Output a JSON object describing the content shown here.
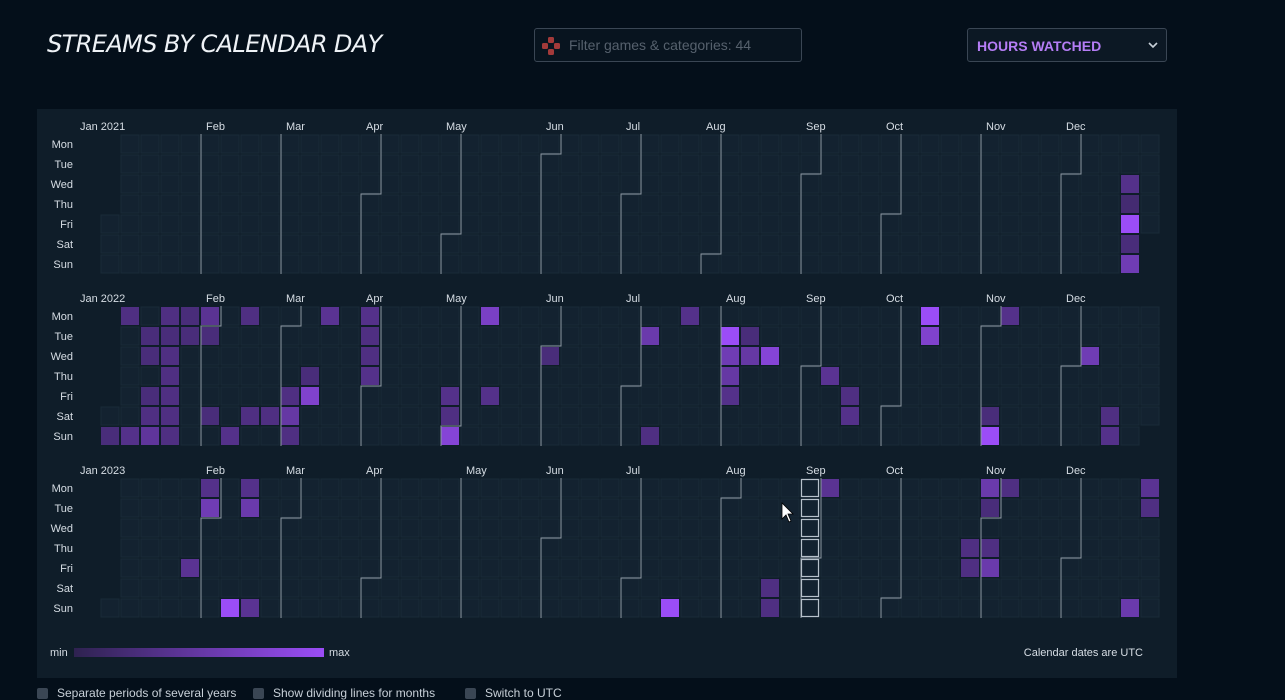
{
  "header": {
    "title": "STREAMS BY CALENDAR DAY",
    "filter_placeholder": "Filter games & categories: 44",
    "metric_select": "HOURS WATCHED"
  },
  "icons": {
    "filter": "controller-icon",
    "select": "chevron-down-icon"
  },
  "colors": {
    "empty_cell": "#132230",
    "cell_border": "#1a2a38",
    "scale_min": "#2e2250",
    "scale_max": "#9b4df7",
    "selected_border": "#b8c2cc",
    "month_line": "#8e99a4"
  },
  "weekdays": [
    "Mon",
    "Tue",
    "Wed",
    "Thu",
    "Fri",
    "Sat",
    "Sun"
  ],
  "months": [
    "Feb",
    "Mar",
    "Apr",
    "May",
    "Jun",
    "Jul",
    "Aug",
    "Sep",
    "Oct",
    "Nov",
    "Dec"
  ],
  "legend": {
    "min": "min",
    "max": "max",
    "utc_note": "Calendar dates are UTC"
  },
  "years": [
    {
      "year": 2021,
      "label": "Jan 2021",
      "days": [
        {
          "date": "2021-12-22",
          "level": 0.35
        },
        {
          "date": "2021-12-23",
          "level": 0.2
        },
        {
          "date": "2021-12-24",
          "level": 1.0
        },
        {
          "date": "2021-12-25",
          "level": 0.25
        },
        {
          "date": "2021-12-26",
          "level": 0.6
        }
      ]
    },
    {
      "year": 2022,
      "label": "Jan 2022",
      "days": [
        {
          "date": "2022-01-02",
          "level": 0.25
        },
        {
          "date": "2022-01-03",
          "level": 0.3
        },
        {
          "date": "2022-01-09",
          "level": 0.35
        },
        {
          "date": "2022-01-11",
          "level": 0.25
        },
        {
          "date": "2022-01-12",
          "level": 0.25
        },
        {
          "date": "2022-01-14",
          "level": 0.25
        },
        {
          "date": "2022-01-15",
          "level": 0.3
        },
        {
          "date": "2022-01-16",
          "level": 0.45
        },
        {
          "date": "2022-01-17",
          "level": 0.3
        },
        {
          "date": "2022-01-18",
          "level": 0.25
        },
        {
          "date": "2022-01-19",
          "level": 0.3
        },
        {
          "date": "2022-01-20",
          "level": 0.3
        },
        {
          "date": "2022-01-21",
          "level": 0.3
        },
        {
          "date": "2022-01-22",
          "level": 0.3
        },
        {
          "date": "2022-01-23",
          "level": 0.3
        },
        {
          "date": "2022-01-24",
          "level": 0.25
        },
        {
          "date": "2022-01-25",
          "level": 0.25
        },
        {
          "date": "2022-01-31",
          "level": 0.4
        },
        {
          "date": "2022-02-01",
          "level": 0.25
        },
        {
          "date": "2022-02-05",
          "level": 0.25
        },
        {
          "date": "2022-02-13",
          "level": 0.35
        },
        {
          "date": "2022-02-14",
          "level": 0.3
        },
        {
          "date": "2022-02-19",
          "level": 0.3
        },
        {
          "date": "2022-02-26",
          "level": 0.3
        },
        {
          "date": "2022-03-04",
          "level": 0.3
        },
        {
          "date": "2022-03-05",
          "level": 0.5
        },
        {
          "date": "2022-03-06",
          "level": 0.3
        },
        {
          "date": "2022-03-10",
          "level": 0.25
        },
        {
          "date": "2022-03-11",
          "level": 0.75
        },
        {
          "date": "2022-03-14",
          "level": 0.4
        },
        {
          "date": "2022-03-28",
          "level": 0.35
        },
        {
          "date": "2022-03-29",
          "level": 0.3
        },
        {
          "date": "2022-03-30",
          "level": 0.3
        },
        {
          "date": "2022-03-31",
          "level": 0.35
        },
        {
          "date": "2022-04-29",
          "level": 0.35
        },
        {
          "date": "2022-04-30",
          "level": 0.3
        },
        {
          "date": "2022-05-01",
          "level": 0.8
        },
        {
          "date": "2022-05-09",
          "level": 0.7
        },
        {
          "date": "2022-05-13",
          "level": 0.35
        },
        {
          "date": "2022-06-01",
          "level": 0.25
        },
        {
          "date": "2022-07-05",
          "level": 0.55
        },
        {
          "date": "2022-07-10",
          "level": 0.3
        },
        {
          "date": "2022-07-18",
          "level": 0.35
        },
        {
          "date": "2022-08-02",
          "level": 1.0
        },
        {
          "date": "2022-08-03",
          "level": 0.6
        },
        {
          "date": "2022-08-04",
          "level": 0.5
        },
        {
          "date": "2022-08-05",
          "level": 0.35
        },
        {
          "date": "2022-08-09",
          "level": 0.25
        },
        {
          "date": "2022-08-10",
          "level": 0.5
        },
        {
          "date": "2022-08-17",
          "level": 0.8
        },
        {
          "date": "2022-09-08",
          "level": 0.4
        },
        {
          "date": "2022-09-16",
          "level": 0.3
        },
        {
          "date": "2022-09-17",
          "level": 0.35
        },
        {
          "date": "2022-10-10",
          "level": 1.0
        },
        {
          "date": "2022-10-11",
          "level": 0.75
        },
        {
          "date": "2022-11-05",
          "level": 0.25
        },
        {
          "date": "2022-11-06",
          "level": 1.0
        },
        {
          "date": "2022-11-07",
          "level": 0.35
        },
        {
          "date": "2022-12-07",
          "level": 0.6
        },
        {
          "date": "2022-12-17",
          "level": 0.3
        },
        {
          "date": "2022-12-18",
          "level": 0.35
        }
      ]
    },
    {
      "year": 2023,
      "label": "Jan 2023",
      "days": [
        {
          "date": "2023-01-27",
          "level": 0.4
        },
        {
          "date": "2023-01-30",
          "level": 0.35
        },
        {
          "date": "2023-01-31",
          "level": 0.6
        },
        {
          "date": "2023-02-12",
          "level": 1.0
        },
        {
          "date": "2023-02-13",
          "level": 0.35
        },
        {
          "date": "2023-02-14",
          "level": 0.55
        },
        {
          "date": "2023-02-19",
          "level": 0.4
        },
        {
          "date": "2023-07-16",
          "level": 1.0
        },
        {
          "date": "2023-08-19",
          "level": 0.3
        },
        {
          "date": "2023-08-20",
          "level": 0.3
        },
        {
          "date": "2023-09-04",
          "level": 0.4
        },
        {
          "date": "2023-10-26",
          "level": 0.3
        },
        {
          "date": "2023-10-27",
          "level": 0.3
        },
        {
          "date": "2023-10-30",
          "level": 0.55
        },
        {
          "date": "2023-10-31",
          "level": 0.25
        },
        {
          "date": "2023-11-02",
          "level": 0.3
        },
        {
          "date": "2023-11-03",
          "level": 0.55
        },
        {
          "date": "2023-11-06",
          "level": 0.3
        },
        {
          "date": "2023-12-24",
          "level": 0.55
        },
        {
          "date": "2023-12-25",
          "level": 0.4
        },
        {
          "date": "2023-12-26",
          "level": 0.3
        }
      ]
    }
  ],
  "selected_week": {
    "year": 2023,
    "week_start": "2023-08-28"
  },
  "options": [
    {
      "label": "Separate periods of several years",
      "checked": true
    },
    {
      "label": "Show dividing lines for months",
      "checked": true
    },
    {
      "label": "Switch to UTC",
      "checked": false
    }
  ]
}
